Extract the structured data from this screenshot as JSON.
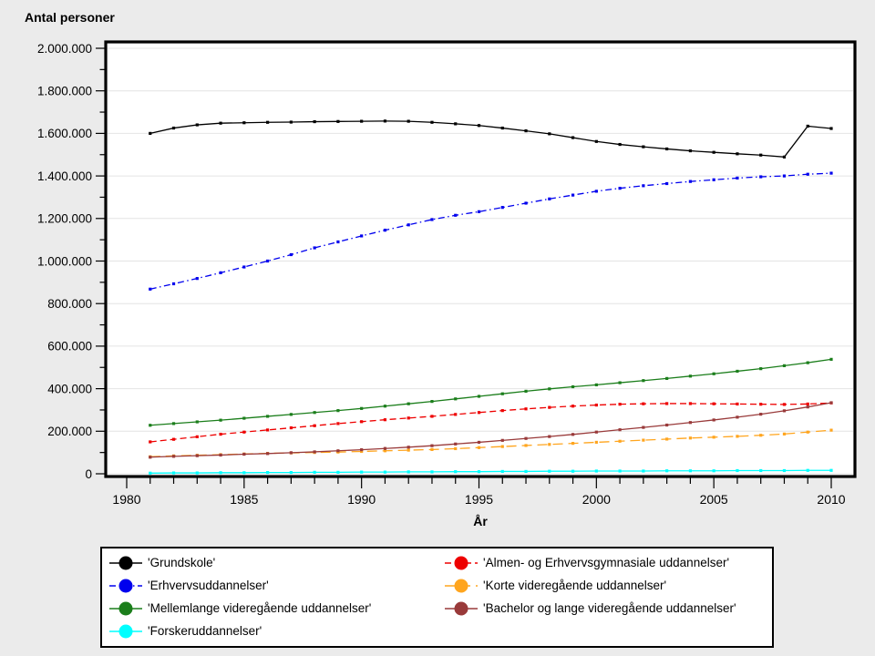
{
  "page": {
    "background": "#ebebeb",
    "plot_background": "#ffffff"
  },
  "chart_data": {
    "type": "line",
    "title": "Antal personer",
    "xlabel": "År",
    "ylabel": "Antal personer",
    "grid": "horizontal",
    "legend_position": "bottom",
    "xlim": [
      1980,
      2010
    ],
    "ylim": [
      0,
      2000000
    ],
    "x_ticks": [
      1980,
      1985,
      1990,
      1995,
      2000,
      2005,
      2010
    ],
    "x_minor_step": 1,
    "y_ticks": [
      0,
      200000,
      400000,
      600000,
      800000,
      1000000,
      1200000,
      1400000,
      1600000,
      1800000,
      2000000
    ],
    "y_tick_step": 200000,
    "y_minor_step": 100000,
    "y_tick_labels": [
      "0",
      "200.000",
      "400.000",
      "600.000",
      "800.000",
      "1.000.000",
      "1.200.000",
      "1.400.000",
      "1.600.000",
      "1.800.000",
      "2.000.000"
    ],
    "x": [
      1981,
      1982,
      1983,
      1984,
      1985,
      1986,
      1987,
      1988,
      1989,
      1990,
      1991,
      1992,
      1993,
      1994,
      1995,
      1996,
      1997,
      1998,
      1999,
      2000,
      2001,
      2002,
      2003,
      2004,
      2005,
      2006,
      2007,
      2008,
      2009,
      2010
    ],
    "series": [
      {
        "name": "Grundskole",
        "label": "'Grundskole'",
        "color": "#000000",
        "line_style": "solid",
        "marker": "square",
        "values": [
          1600000,
          1625000,
          1640000,
          1648000,
          1650000,
          1652000,
          1653000,
          1655000,
          1656000,
          1657000,
          1658000,
          1657000,
          1652000,
          1645000,
          1637000,
          1625000,
          1612000,
          1598000,
          1580000,
          1562000,
          1548000,
          1537000,
          1527000,
          1518000,
          1511000,
          1504000,
          1498000,
          1489000,
          1634000,
          1623000
        ]
      },
      {
        "name": "Erhvervsuddannelser",
        "label": "'Erhvervsuddannelser'",
        "color": "#0000ee",
        "line_style": "dashdot",
        "marker": "square",
        "values": [
          868000,
          893000,
          918000,
          945000,
          972000,
          1000000,
          1030000,
          1062000,
          1090000,
          1118000,
          1145000,
          1170000,
          1195000,
          1215000,
          1232000,
          1252000,
          1272000,
          1292000,
          1310000,
          1328000,
          1342000,
          1354000,
          1364000,
          1374000,
          1382000,
          1390000,
          1396000,
          1400000,
          1408000,
          1413000
        ]
      },
      {
        "name": "Mellemlange videregående uddannelser",
        "label": "'Mellemlange videregående uddannelser'",
        "color": "#1b7e1b",
        "line_style": "solid",
        "marker": "square",
        "values": [
          228000,
          236000,
          244000,
          252000,
          261000,
          270000,
          279000,
          288000,
          297000,
          307000,
          318000,
          329000,
          340000,
          352000,
          364000,
          376000,
          388000,
          399000,
          409000,
          418000,
          428000,
          438000,
          448000,
          459000,
          470000,
          482000,
          494000,
          508000,
          522000,
          538000
        ]
      },
      {
        "name": "Forskeruddannelser",
        "label": "'Forskeruddannelser'",
        "color": "#00ffff",
        "line_style": "solid",
        "marker": "square",
        "values": [
          3000,
          4000,
          4000,
          5000,
          5000,
          6000,
          6000,
          7000,
          7000,
          8000,
          8000,
          9000,
          9000,
          10000,
          10000,
          11000,
          11000,
          12000,
          12000,
          13000,
          13000,
          13000,
          14000,
          14000,
          14000,
          15000,
          15000,
          15000,
          16000,
          16000
        ]
      },
      {
        "name": "Almen- og Erhvervsgymnasiale uddannelser",
        "label": "'Almen- og Erhvervsgymnasiale uddannelser'",
        "color": "#ee0000",
        "line_style": "dashed",
        "marker": "square",
        "values": [
          150000,
          162000,
          174000,
          186000,
          196000,
          206000,
          216000,
          226000,
          236000,
          245000,
          254000,
          262000,
          270000,
          279000,
          288000,
          297000,
          305000,
          312000,
          318000,
          323000,
          327000,
          329000,
          330000,
          330000,
          329000,
          328000,
          327000,
          326000,
          328000,
          333000
        ]
      },
      {
        "name": "Korte videregående uddannelser",
        "label": "'Korte videregående uddannelser'",
        "color": "#ffa51e",
        "line_style": "longdash",
        "marker": "square",
        "values": [
          80000,
          84000,
          87000,
          90000,
          93000,
          96000,
          98000,
          100000,
          102000,
          105000,
          108000,
          111000,
          114000,
          118000,
          123000,
          128000,
          133000,
          138000,
          143000,
          148000,
          153000,
          158000,
          163000,
          168000,
          172000,
          176000,
          181000,
          187000,
          196000,
          205000
        ]
      },
      {
        "name": "Bachelor og lange videregående uddannelser",
        "label": "'Bachelor og lange videregående uddannelser'",
        "color": "#993a3a",
        "line_style": "solid",
        "marker": "square",
        "values": [
          78000,
          82000,
          85000,
          88000,
          92000,
          95000,
          99000,
          103000,
          108000,
          113000,
          119000,
          125000,
          132000,
          140000,
          148000,
          157000,
          166000,
          175000,
          185000,
          196000,
          207000,
          218000,
          229000,
          241000,
          253000,
          266000,
          280000,
          296000,
          314000,
          334000
        ]
      }
    ]
  }
}
